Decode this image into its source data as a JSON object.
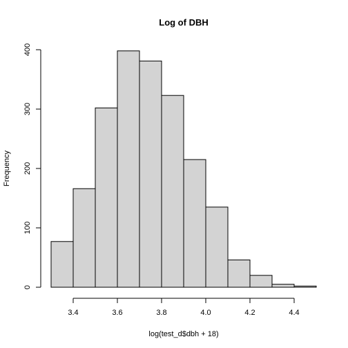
{
  "chart_data": {
    "type": "bar",
    "title": "Log of DBH",
    "xlabel": "log(test_d$dbh + 18)",
    "ylabel": "Frequency",
    "bins": [
      {
        "start": 3.3,
        "end": 3.4,
        "count": 77
      },
      {
        "start": 3.4,
        "end": 3.5,
        "count": 166
      },
      {
        "start": 3.5,
        "end": 3.6,
        "count": 302
      },
      {
        "start": 3.6,
        "end": 3.7,
        "count": 398
      },
      {
        "start": 3.7,
        "end": 3.8,
        "count": 381
      },
      {
        "start": 3.8,
        "end": 3.9,
        "count": 323
      },
      {
        "start": 3.9,
        "end": 4.0,
        "count": 215
      },
      {
        "start": 4.0,
        "end": 4.1,
        "count": 135
      },
      {
        "start": 4.1,
        "end": 4.2,
        "count": 46
      },
      {
        "start": 4.2,
        "end": 4.3,
        "count": 20
      },
      {
        "start": 4.3,
        "end": 4.4,
        "count": 5
      },
      {
        "start": 4.4,
        "end": 4.5,
        "count": 2
      }
    ],
    "xticks": [
      "3.4",
      "3.6",
      "3.8",
      "4.0",
      "4.2",
      "4.4"
    ],
    "yticks": [
      "0",
      "100",
      "200",
      "300",
      "400"
    ],
    "xlim": [
      3.3,
      4.5
    ],
    "ylim": [
      0,
      400
    ],
    "bar_color": "#d3d3d3",
    "grid": false,
    "legend": "none"
  }
}
